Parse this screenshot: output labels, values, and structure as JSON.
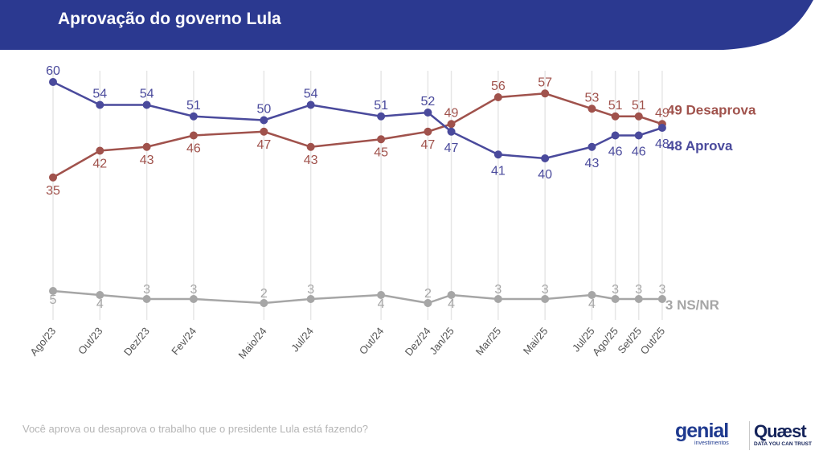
{
  "header": {
    "title": "Aprovação do governo Lula",
    "bg_color": "#2b3990"
  },
  "footer": {
    "question": "Você aprova ou desaprova o trabalho que o presidente Lula está fazendo?"
  },
  "logos": {
    "genial": "genial",
    "genial_sub": "investimentos",
    "quaest": "Quæst",
    "quaest_sub": "DATA YOU CAN TRUST"
  },
  "chart_data": {
    "type": "line",
    "categories": [
      "Ago/23",
      "Out/23",
      "Dez/23",
      "Fev/24",
      "Maio/24",
      "Jul/24",
      "Out/24",
      "Dez/24",
      "Jan/25",
      "Mar/25",
      "Mai/25",
      "Jul/25",
      "Ago/25",
      "Set/25",
      "Out/25"
    ],
    "x_months": [
      0,
      2,
      4,
      6,
      9,
      11,
      14,
      16,
      17,
      19,
      21,
      23,
      24,
      25,
      26
    ],
    "series": [
      {
        "name": "Aprova",
        "end_label": "48 Aprova",
        "color": "#4a4a9c",
        "values": [
          60,
          54,
          54,
          51,
          50,
          54,
          51,
          52,
          47,
          41,
          40,
          43,
          46,
          46,
          48
        ]
      },
      {
        "name": "Desaprova",
        "end_label": "49 Desaprova",
        "color": "#a0524c",
        "values": [
          35,
          42,
          43,
          46,
          47,
          43,
          45,
          47,
          49,
          56,
          57,
          53,
          51,
          51,
          49
        ]
      },
      {
        "name": "NS/NR",
        "end_label": "3 NS/NR",
        "color": "#a6a6a6",
        "values": [
          5,
          4,
          3,
          3,
          2,
          3,
          4,
          2,
          4,
          3,
          3,
          4,
          3,
          3,
          3
        ]
      }
    ],
    "xlabel": "",
    "ylabel": "",
    "grid": "vertical",
    "legend": "end-of-line labels"
  }
}
